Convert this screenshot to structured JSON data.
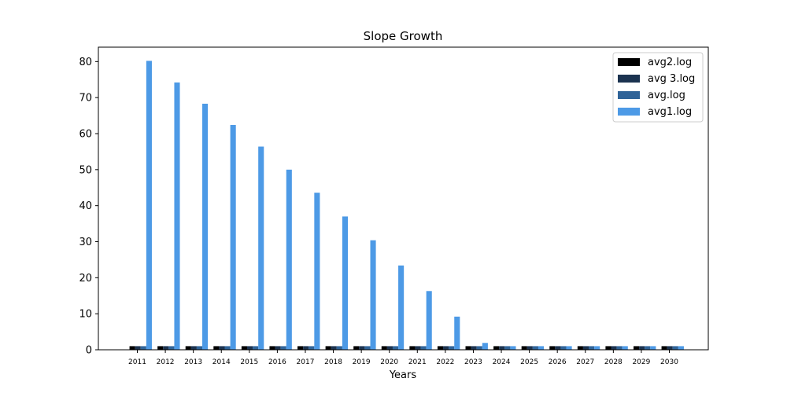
{
  "chart_data": {
    "type": "bar",
    "title": "Slope Growth",
    "xlabel": "Years",
    "ylabel": "",
    "ylim": [
      0,
      84
    ],
    "yticks": [
      0,
      10,
      20,
      30,
      40,
      50,
      60,
      70,
      80
    ],
    "grid": false,
    "legend_position": "top-right",
    "categories": [
      "2011",
      "2012",
      "2013",
      "2014",
      "2015",
      "2016",
      "2017",
      "2018",
      "2019",
      "2020",
      "2021",
      "2022",
      "2023",
      "2024",
      "2025",
      "2026",
      "2027",
      "2028",
      "2029",
      "2030"
    ],
    "series": [
      {
        "name": "avg2.log",
        "color": "#000000",
        "values": [
          1,
          1,
          1,
          1,
          1,
          1,
          1,
          1,
          1,
          1,
          1,
          1,
          1,
          1,
          1,
          1,
          1,
          1,
          1,
          1
        ]
      },
      {
        "name": "avg 3.log",
        "color": "#1b3350",
        "values": [
          1,
          1,
          1,
          1,
          1,
          1,
          1,
          1,
          1,
          1,
          1,
          1,
          1,
          1,
          1,
          1,
          1,
          1,
          1,
          1
        ]
      },
      {
        "name": "avg.log",
        "color": "#2f6398",
        "values": [
          1,
          1,
          1,
          1,
          1,
          1,
          1,
          1,
          1,
          1,
          1,
          1,
          1,
          1,
          1,
          1,
          1,
          1,
          1,
          1
        ]
      },
      {
        "name": "avg1.log",
        "color": "#4d9ae6",
        "values": [
          80.2,
          74.2,
          68.3,
          62.4,
          56.4,
          50,
          43.6,
          37,
          30.4,
          23.4,
          16.3,
          9.2,
          1.9,
          1,
          1,
          1,
          1,
          1,
          1,
          1
        ]
      }
    ]
  }
}
